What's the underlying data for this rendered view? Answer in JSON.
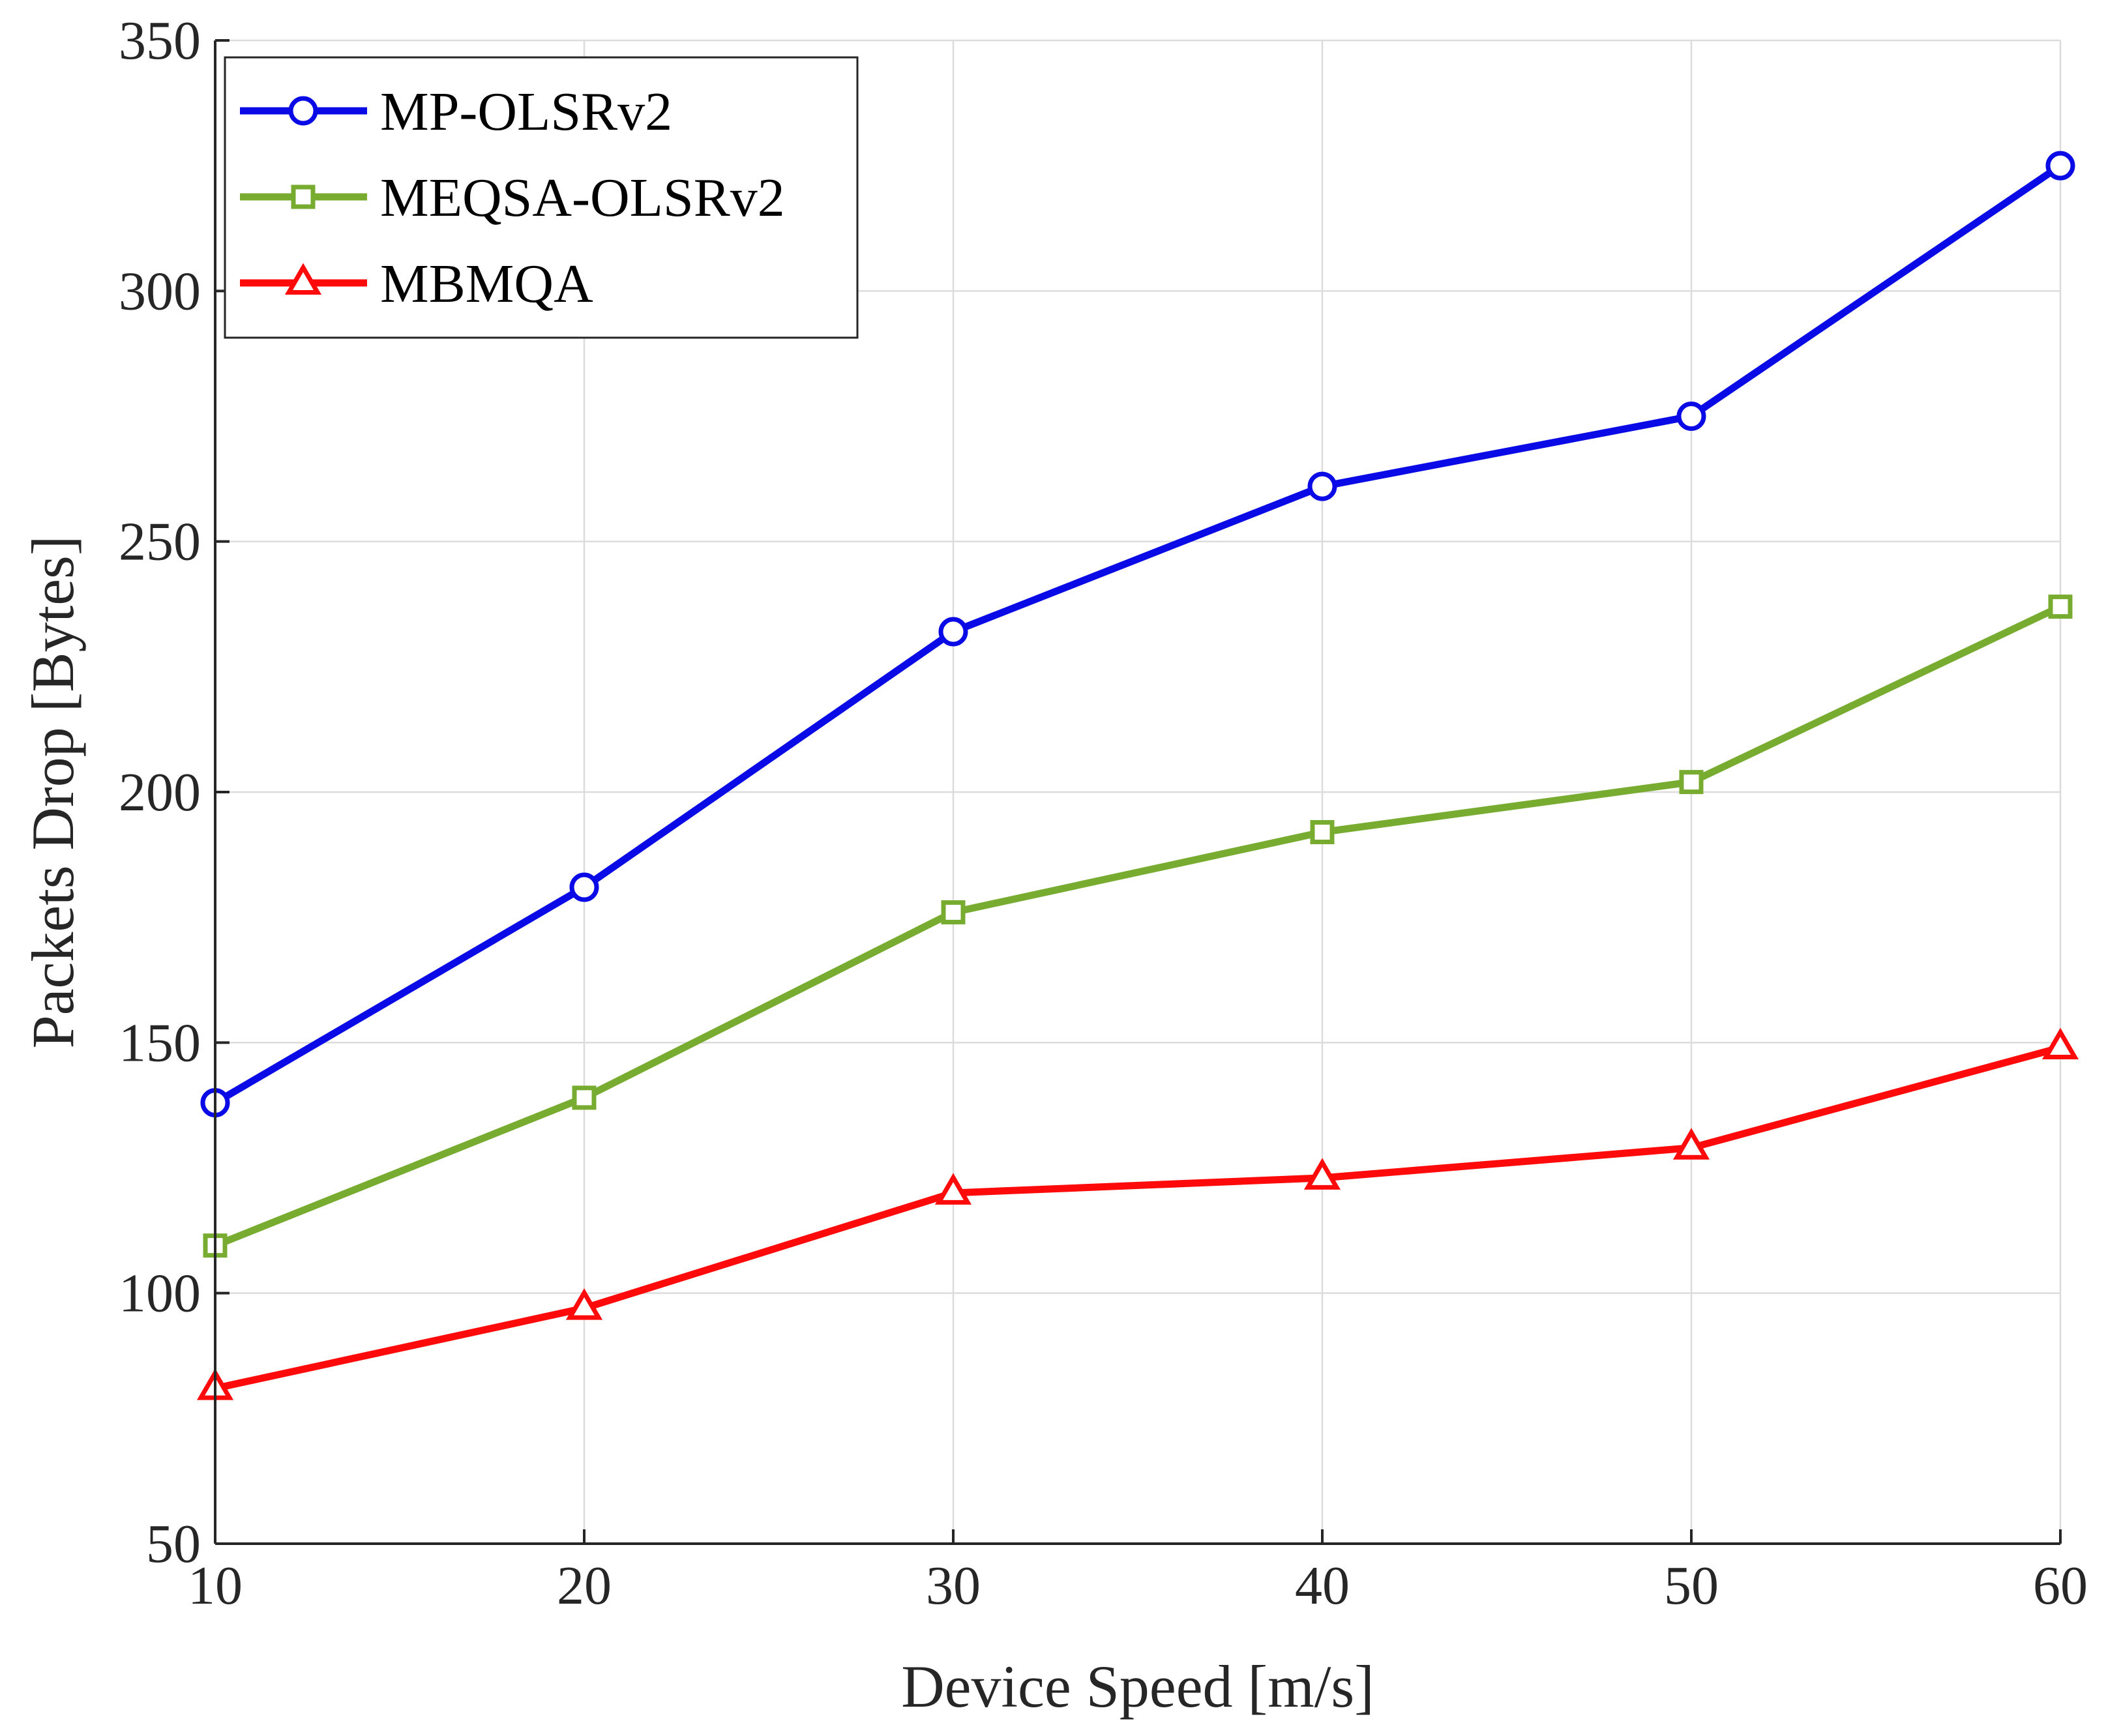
{
  "chart_data": {
    "type": "line",
    "title": "",
    "xlabel": "Device Speed [m/s]",
    "ylabel": "Packets Drop [Bytes]",
    "x": [
      10,
      20,
      30,
      40,
      50,
      60
    ],
    "xlim": [
      10,
      60
    ],
    "ylim": [
      50,
      350
    ],
    "xticks": [
      10,
      20,
      30,
      40,
      50,
      60
    ],
    "yticks": [
      50,
      100,
      150,
      200,
      250,
      300,
      350
    ],
    "grid": true,
    "legend_position": "top-left",
    "series": [
      {
        "name": "MP-OLSRv2",
        "marker": "circle",
        "color": "#0a0ae6",
        "values": [
          138,
          181,
          232,
          261,
          275,
          325
        ]
      },
      {
        "name": "MEQSA-OLSRv2",
        "marker": "square",
        "color": "#77ac30",
        "values": [
          109.5,
          139,
          176,
          192,
          202,
          237
        ]
      },
      {
        "name": "MBMQA",
        "marker": "triangle",
        "color": "#ff0a0a",
        "values": [
          81,
          97,
          120,
          123,
          129,
          149
        ]
      }
    ]
  }
}
